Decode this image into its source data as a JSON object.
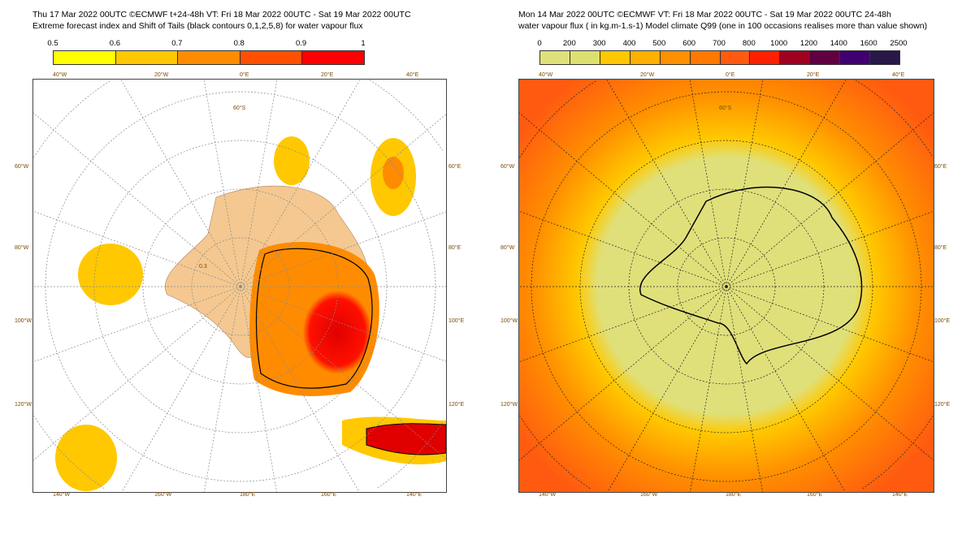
{
  "chart_data": [
    {
      "type": "heatmap",
      "title": "Thu 17 Mar 2022 00UTC ©ECMWF t+24-48h  VT: Fri 18 Mar 2022 00UTC - Sat 19 Mar 2022 00UTC",
      "subtitle": "Extreme forecast index and Shift of Tails (black contours 0,1,2,5,8) for water vapour flux",
      "colorbar": {
        "ticks": [
          "0.5",
          "0.6",
          "0.7",
          "0.8",
          "0.9",
          "1"
        ],
        "colors": [
          "#ffff00",
          "#ffc800",
          "#ff8c00",
          "#ff5000",
          "#ff0000"
        ]
      },
      "lon_labels_top": [
        "40°W",
        "20°W",
        "0°E",
        "20°E",
        "40°E"
      ],
      "lon_labels_bottom": [
        "140°W",
        "160°W",
        "180°E",
        "160°E",
        "140°E"
      ],
      "lon_labels_left": [
        "60°W",
        "80°W",
        "100°W",
        "120°W"
      ],
      "lon_labels_right": [
        "60°E",
        "80°E",
        "100°E",
        "120°E"
      ],
      "lat_label": "60°S",
      "contour_label": "0.3"
    },
    {
      "type": "heatmap",
      "title": "Mon 14 Mar 2022 00UTC ©ECMWF VT: Fri 18 Mar 2022 00UTC - Sat 19 Mar 2022 00UTC   24-48h",
      "subtitle": "water vapour flux ( in kg.m-1.s-1)   Model climate Q99 (one in 100 occasions realises more than value shown)",
      "colorbar": {
        "ticks": [
          "0",
          "200",
          "300",
          "400",
          "500",
          "600",
          "700",
          "800",
          "1000",
          "1200",
          "1400",
          "1600",
          "2500"
        ],
        "colors": [
          "#e0e07a",
          "#dde070",
          "#ffc800",
          "#ffb000",
          "#ff9000",
          "#ff7800",
          "#ff5a10",
          "#ff2000",
          "#a00020",
          "#600040",
          "#400070",
          "#281848"
        ]
      },
      "lon_labels_top": [
        "40°W",
        "20°W",
        "0°E",
        "20°E",
        "40°E"
      ],
      "lon_labels_bottom": [
        "140°W",
        "160°W",
        "180°E",
        "160°E",
        "140°E"
      ],
      "lon_labels_left": [
        "60°W",
        "80°W",
        "100°W",
        "120°W"
      ],
      "lon_labels_right": [
        "60°E",
        "80°E",
        "100°E",
        "120°E"
      ],
      "lat_label": "60°S"
    }
  ]
}
